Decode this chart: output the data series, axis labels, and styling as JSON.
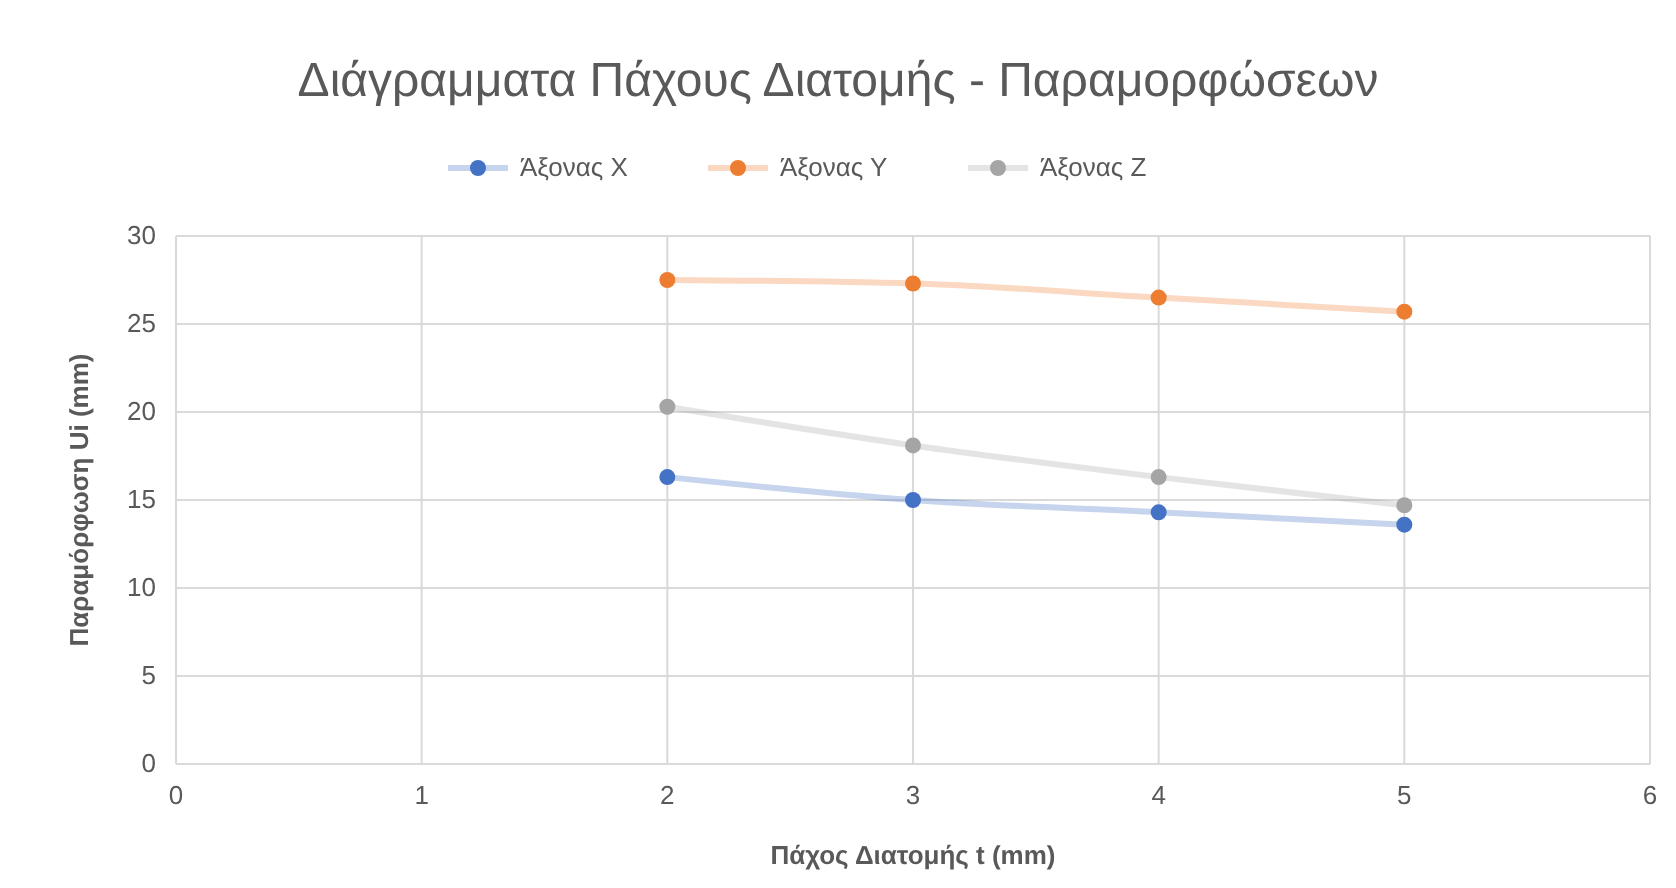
{
  "chart_data": {
    "type": "line",
    "title": "Διάγραμματα Πάχους Διατομής - Παραμορφώσεων",
    "xlabel": "Πάχος Διατομής t (mm)",
    "ylabel": "Παραμόρφωση Ui (mm)",
    "x": [
      2,
      3,
      4,
      5
    ],
    "series": [
      {
        "name": "Άξονας Χ",
        "color": "#4472c4",
        "values": [
          16.3,
          15.0,
          14.3,
          13.6
        ]
      },
      {
        "name": "Άξονας Υ",
        "color": "#ed7d31",
        "values": [
          27.5,
          27.3,
          26.5,
          25.7
        ]
      },
      {
        "name": "Άξονας Ζ",
        "color": "#a5a5a5",
        "values": [
          20.3,
          18.1,
          16.3,
          14.7
        ]
      }
    ],
    "xlim": [
      0,
      6
    ],
    "xticks": [
      0,
      1,
      2,
      3,
      4,
      5,
      6
    ],
    "ylim": [
      0,
      30
    ],
    "yticks": [
      0,
      5,
      10,
      15,
      20,
      25,
      30
    ],
    "grid": true,
    "legend": "top",
    "marker": "circle"
  }
}
